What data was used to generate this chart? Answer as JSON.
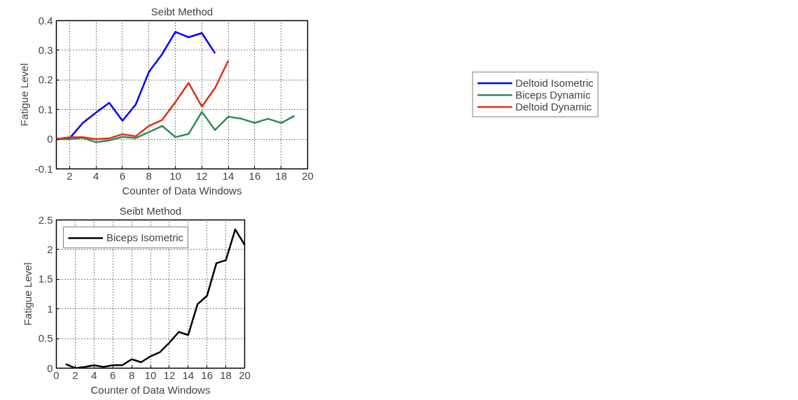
{
  "chart_data": [
    {
      "type": "line",
      "title": "Seibt Method",
      "xlabel": "Counter of Data Windows",
      "ylabel": "Fatigue Level",
      "xlim": [
        1,
        20
      ],
      "ylim": [
        -0.1,
        0.4
      ],
      "xticks": [
        2,
        4,
        6,
        8,
        10,
        12,
        14,
        16,
        18,
        20
      ],
      "yticks": [
        -0.1,
        0,
        0.1,
        0.2,
        0.3,
        0.4
      ],
      "grid": true,
      "legend": "right",
      "line_style": "solid",
      "marker": "none",
      "series": [
        {
          "name": "Deltoid Isometric",
          "color": "#0000ff",
          "x": [
            1,
            2,
            3,
            4,
            5,
            6,
            7,
            8,
            9,
            10,
            11,
            12,
            13
          ],
          "values": [
            0,
            0.003,
            0.055,
            0.09,
            0.123,
            0.062,
            0.117,
            0.227,
            0.287,
            0.362,
            0.344,
            0.358,
            0.29
          ]
        },
        {
          "name": "Biceps Dynamic",
          "color": "#2e8b57",
          "x": [
            1,
            2,
            3,
            4,
            5,
            6,
            7,
            8,
            9,
            10,
            11,
            12,
            13,
            14,
            15,
            16,
            17,
            18,
            19
          ],
          "values": [
            0,
            0,
            0.005,
            -0.01,
            -0.004,
            0.008,
            0.004,
            0.024,
            0.045,
            0.007,
            0.018,
            0.092,
            0.031,
            0.076,
            0.069,
            0.055,
            0.069,
            0.055,
            0.079
          ]
        },
        {
          "name": "Deltoid Dynamic",
          "color": "#e03010",
          "x": [
            1,
            2,
            3,
            4,
            5,
            6,
            7,
            8,
            9,
            10,
            11,
            12,
            13,
            14
          ],
          "values": [
            0,
            0.007,
            0.007,
            0,
            0.003,
            0.017,
            0.01,
            0.045,
            0.065,
            0.125,
            0.19,
            0.11,
            0.173,
            0.265
          ]
        }
      ]
    },
    {
      "type": "line",
      "title": "Seibt Method",
      "xlabel": "Counter of Data Windows",
      "ylabel": "Fatigue Level",
      "xlim": [
        0,
        20
      ],
      "ylim": [
        0,
        2.5
      ],
      "xticks": [
        0,
        2,
        4,
        6,
        8,
        10,
        12,
        14,
        16,
        18,
        20
      ],
      "yticks": [
        0,
        0.5,
        1,
        1.5,
        2,
        2.5
      ],
      "grid": true,
      "legend": "top left",
      "line_style": "solid",
      "marker": "none",
      "series": [
        {
          "name": "Biceps Isometric",
          "color": "#000000",
          "x": [
            1,
            2,
            3,
            4,
            5,
            6,
            7,
            8,
            9,
            10,
            11,
            12,
            13,
            14,
            15,
            16,
            17,
            18,
            19,
            20
          ],
          "values": [
            0.07,
            0,
            0.02,
            0.05,
            0.02,
            0.05,
            0.05,
            0.15,
            0.1,
            0.2,
            0.27,
            0.43,
            0.61,
            0.56,
            1.08,
            1.22,
            1.77,
            1.82,
            2.34,
            2.08
          ]
        }
      ]
    }
  ]
}
